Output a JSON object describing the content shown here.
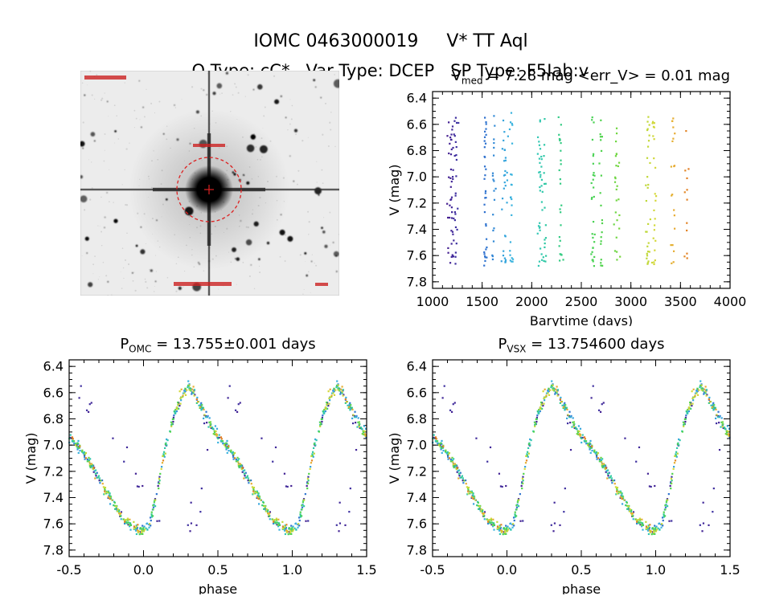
{
  "header": {
    "title": "IOMC 0463000019     V* TT Aql",
    "subtitle": "O Type: cC*   Var Type: DCEP   SP Type: F5Iab:v"
  },
  "star": {
    "iomc_id": "0463000019",
    "name": "V* TT Aql",
    "o_type": "cC*",
    "var_type": "DCEP",
    "sp_type": "F5Iab:v",
    "v_med_mag": 7.28,
    "err_v_mag": 0.01,
    "p_omc_days": "13.755±0.001",
    "p_vsx_days": "13.754600"
  },
  "finder_chart": {
    "description": "Grayscale sky image of the field around TT Aql: bright saturated central star with vertical and horizontal diffraction spikes, diffuse halo and many field stars",
    "target_marker": "red dashed circle centered on the bright star with small red cross",
    "marker_color": "#dd2222",
    "annotation_color": "#cc2222"
  },
  "chart_data": [
    {
      "id": "v-vs-barytime",
      "type": "scatter",
      "title": "V_med = 7.28 mag <err_V> = 0.01 mag",
      "title_prefix": "V",
      "title_sub": "med",
      "title_rest": " = 7.28 mag <err_V> = 0.01 mag",
      "xlabel": "Barytime (days)",
      "ylabel": "V (mag)",
      "xlim": [
        1000,
        4000
      ],
      "ylim_top": 6.35,
      "ylim_bottom": 7.85,
      "y_inverted": true,
      "xticks": [
        1000,
        1500,
        2000,
        2500,
        3000,
        3500,
        4000
      ],
      "yticks": [
        6.4,
        6.6,
        6.8,
        7.0,
        7.2,
        7.4,
        7.6,
        7.8
      ],
      "x_minor_step": 100,
      "y_minor_step": 0.05,
      "x_decimals": 0,
      "y_decimals": 1,
      "mag_range_observed": [
        6.55,
        7.66
      ],
      "point_color_encodes": "observation time, rainbow colormap (early=dark purple, late=orange)",
      "observation_epochs": [
        {
          "t": 1190,
          "sigma": 22,
          "n": 50
        },
        {
          "t": 1235,
          "sigma": 8,
          "n": 18
        },
        {
          "t": 1530,
          "sigma": 10,
          "n": 34
        },
        {
          "t": 1615,
          "sigma": 8,
          "n": 20
        },
        {
          "t": 1725,
          "sigma": 14,
          "n": 30
        },
        {
          "t": 1790,
          "sigma": 10,
          "n": 24
        },
        {
          "t": 2090,
          "sigma": 15,
          "n": 36
        },
        {
          "t": 2130,
          "sigma": 8,
          "n": 14
        },
        {
          "t": 2290,
          "sigma": 10,
          "n": 26
        },
        {
          "t": 2620,
          "sigma": 10,
          "n": 30
        },
        {
          "t": 2700,
          "sigma": 8,
          "n": 20
        },
        {
          "t": 2860,
          "sigma": 12,
          "n": 26
        },
        {
          "t": 3170,
          "sigma": 15,
          "n": 30
        },
        {
          "t": 3240,
          "sigma": 8,
          "n": 22
        },
        {
          "t": 3420,
          "sigma": 12,
          "n": 20
        },
        {
          "t": 3560,
          "sigma": 8,
          "n": 12
        }
      ],
      "colormap_stops": [
        [
          1100,
          "#4a1486"
        ],
        [
          1450,
          "#2b5bc8"
        ],
        [
          1700,
          "#35a0dc"
        ],
        [
          1900,
          "#40c8e0"
        ],
        [
          2150,
          "#2ec8a0"
        ],
        [
          2450,
          "#3bcf62"
        ],
        [
          2750,
          "#55d44a"
        ],
        [
          3000,
          "#96d838"
        ],
        [
          3250,
          "#d6d83a"
        ],
        [
          3450,
          "#e8a832"
        ],
        [
          3600,
          "#e07620"
        ]
      ]
    },
    {
      "id": "phase-folded-omc",
      "type": "scatter",
      "title": "P_OMC = 13.755±0.001 days",
      "title_prefix": "P",
      "title_sub": "OMC",
      "title_rest": " = 13.755±0.001 days",
      "period_days": 13.755,
      "period_err_days": 0.001,
      "xlabel": "phase",
      "ylabel": "V (mag)",
      "xlim": [
        -0.5,
        1.5
      ],
      "ylim_top": 6.35,
      "ylim_bottom": 7.85,
      "y_inverted": true,
      "xticks": [
        -0.5,
        0.0,
        0.5,
        1.0,
        1.5
      ],
      "yticks": [
        6.4,
        6.6,
        6.8,
        7.0,
        7.2,
        7.4,
        7.6,
        7.8
      ],
      "x_minor_step": 0.1,
      "y_minor_step": 0.05,
      "x_decimals": 1,
      "y_decimals": 1,
      "mean_curve_phase_mag": [
        [
          0.0,
          7.655
        ],
        [
          0.03,
          7.63
        ],
        [
          0.06,
          7.52
        ],
        [
          0.09,
          7.36
        ],
        [
          0.12,
          7.18
        ],
        [
          0.15,
          7.01
        ],
        [
          0.18,
          6.87
        ],
        [
          0.21,
          6.76
        ],
        [
          0.24,
          6.66
        ],
        [
          0.27,
          6.59
        ],
        [
          0.3,
          6.555
        ],
        [
          0.33,
          6.58
        ],
        [
          0.36,
          6.65
        ],
        [
          0.4,
          6.74
        ],
        [
          0.44,
          6.83
        ],
        [
          0.48,
          6.9
        ],
        [
          0.52,
          6.96
        ],
        [
          0.56,
          7.01
        ],
        [
          0.6,
          7.07
        ],
        [
          0.64,
          7.14
        ],
        [
          0.68,
          7.22
        ],
        [
          0.72,
          7.3
        ],
        [
          0.76,
          7.38
        ],
        [
          0.8,
          7.45
        ],
        [
          0.84,
          7.52
        ],
        [
          0.88,
          7.58
        ],
        [
          0.92,
          7.62
        ],
        [
          0.96,
          7.65
        ],
        [
          1.0,
          7.655
        ]
      ]
    },
    {
      "id": "phase-folded-vsx",
      "type": "scatter",
      "title": "P_VSX = 13.754600 days",
      "title_prefix": "P",
      "title_sub": "VSX",
      "title_rest": " = 13.754600 days",
      "period_days": 13.7546,
      "xlabel": "phase",
      "ylabel": "V (mag)",
      "xlim": [
        -0.5,
        1.5
      ],
      "ylim_top": 6.35,
      "ylim_bottom": 7.85,
      "y_inverted": true,
      "xticks": [
        -0.5,
        0.0,
        0.5,
        1.0,
        1.5
      ],
      "yticks": [
        6.4,
        6.6,
        6.8,
        7.0,
        7.2,
        7.4,
        7.6,
        7.8
      ],
      "x_minor_step": 0.1,
      "y_minor_step": 0.05,
      "x_decimals": 1,
      "y_decimals": 1,
      "mean_curve_phase_mag": [
        [
          0.0,
          7.655
        ],
        [
          0.03,
          7.63
        ],
        [
          0.06,
          7.52
        ],
        [
          0.09,
          7.36
        ],
        [
          0.12,
          7.18
        ],
        [
          0.15,
          7.01
        ],
        [
          0.18,
          6.87
        ],
        [
          0.21,
          6.76
        ],
        [
          0.24,
          6.66
        ],
        [
          0.27,
          6.59
        ],
        [
          0.3,
          6.555
        ],
        [
          0.33,
          6.58
        ],
        [
          0.36,
          6.65
        ],
        [
          0.4,
          6.74
        ],
        [
          0.44,
          6.83
        ],
        [
          0.48,
          6.9
        ],
        [
          0.52,
          6.96
        ],
        [
          0.56,
          7.01
        ],
        [
          0.6,
          7.07
        ],
        [
          0.64,
          7.14
        ],
        [
          0.68,
          7.22
        ],
        [
          0.72,
          7.3
        ],
        [
          0.76,
          7.38
        ],
        [
          0.8,
          7.45
        ],
        [
          0.84,
          7.52
        ],
        [
          0.88,
          7.58
        ],
        [
          0.92,
          7.62
        ],
        [
          0.96,
          7.65
        ],
        [
          1.0,
          7.655
        ]
      ]
    }
  ]
}
